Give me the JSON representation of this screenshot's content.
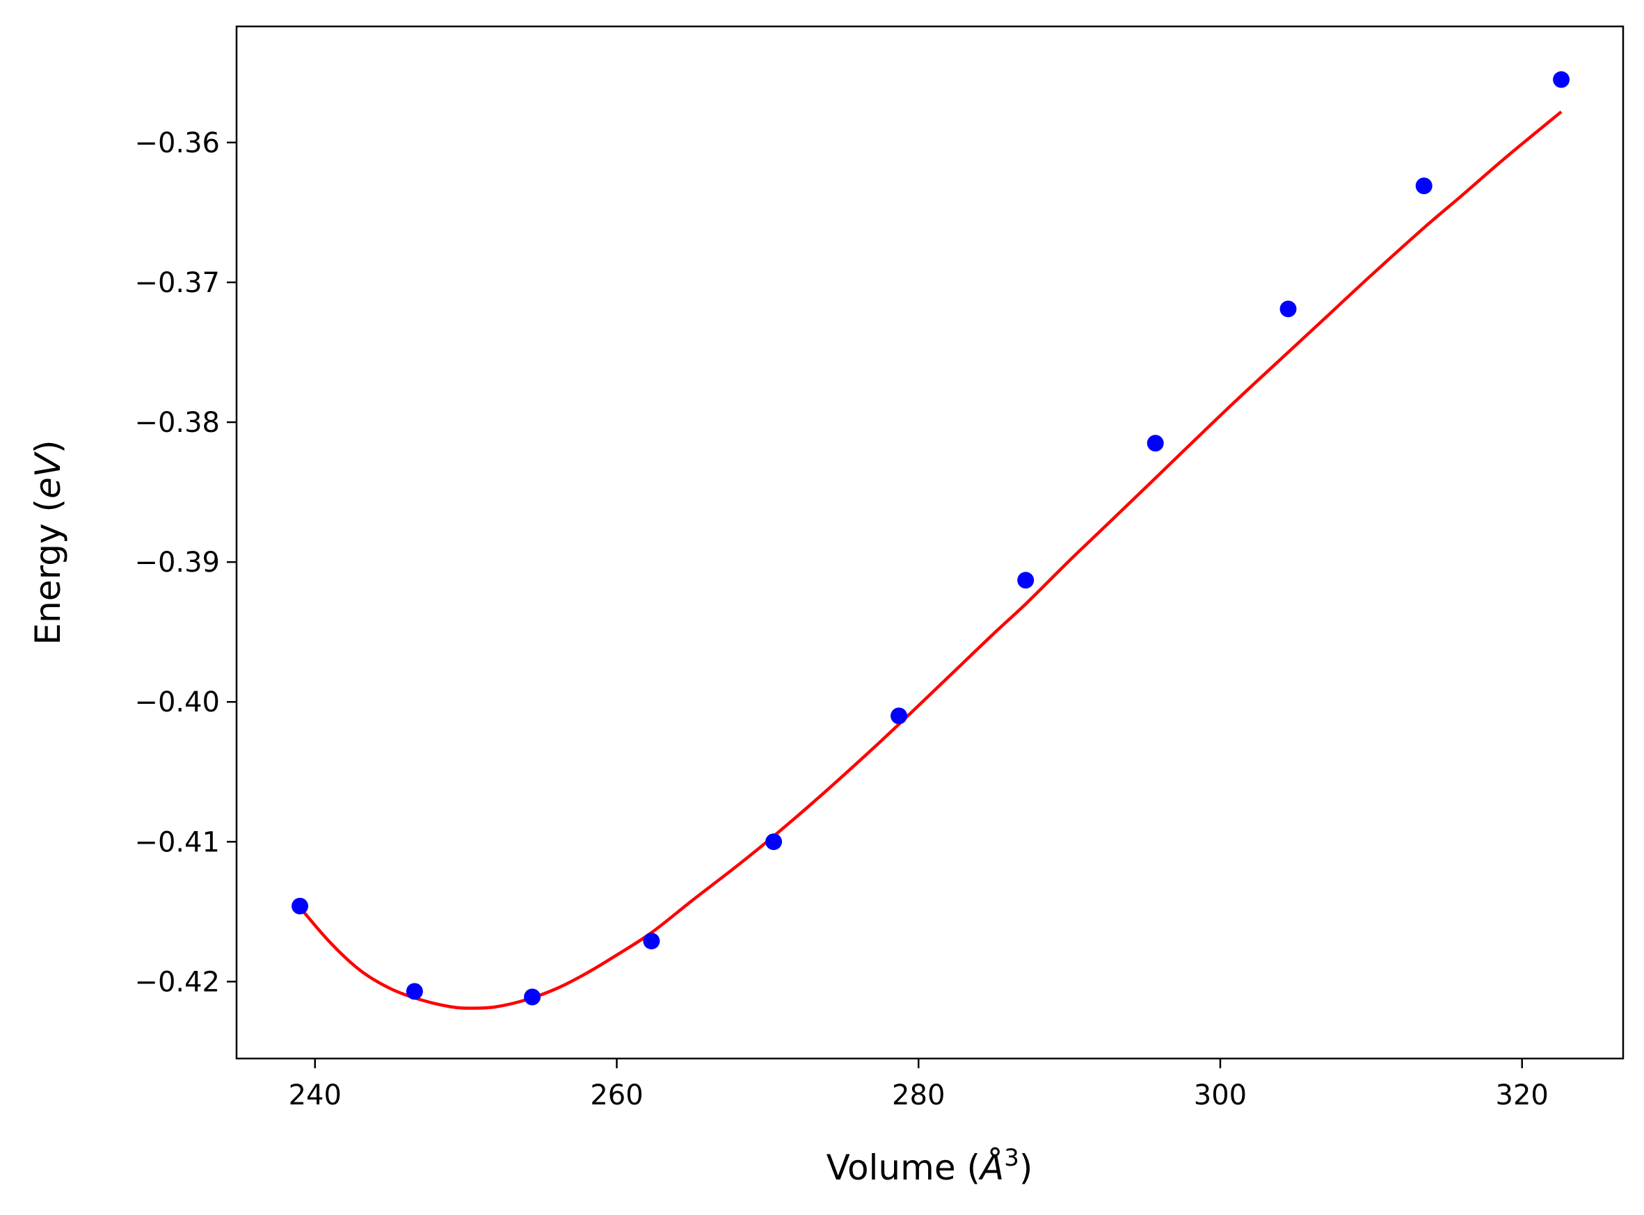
{
  "colors": {
    "fit_line": "#ff0000",
    "points": "#0000ff",
    "axes": "#000000",
    "background": "#ffffff"
  },
  "chart_data": {
    "type": "scatter",
    "title": "",
    "xlabel": {
      "prefix": "Volume (",
      "italic": "Å",
      "sup": "3",
      "suffix": ")"
    },
    "ylabel": {
      "prefix": "Energy (",
      "italic": "eV",
      "suffix": ")"
    },
    "xlim": [
      234.8,
      326.7
    ],
    "ylim": [
      -0.4255,
      -0.3517
    ],
    "xticks": [
      240,
      260,
      280,
      300,
      320
    ],
    "xtick_labels": [
      "240",
      "260",
      "280",
      "300",
      "320"
    ],
    "yticks": [
      -0.42,
      -0.41,
      -0.4,
      -0.39,
      -0.38,
      -0.37,
      -0.36
    ],
    "ytick_labels": [
      "−0.42",
      "−0.41",
      "−0.40",
      "−0.39",
      "−0.38",
      "−0.37",
      "−0.36"
    ],
    "grid": false,
    "series": [
      {
        "kind": "points",
        "color": "#0000ff",
        "x": [
          239.0,
          246.6,
          254.4,
          262.3,
          270.4,
          278.7,
          287.1,
          295.7,
          304.5,
          313.5,
          322.6
        ],
        "y": [
          -0.4146,
          -0.4207,
          -0.4211,
          -0.4171,
          -0.41,
          -0.401,
          -0.3913,
          -0.3815,
          -0.3719,
          -0.3631,
          -0.3555
        ]
      },
      {
        "kind": "fit-line",
        "color": "#ff0000",
        "x": [
          239.0,
          241.0,
          243.0,
          245.0,
          247.0,
          249.0,
          250.4,
          252.0,
          254.0,
          256.0,
          258.0,
          260.0,
          262.3,
          265.0,
          268.0,
          270.4,
          273.0,
          276.0,
          278.7,
          282.0,
          285.0,
          287.1,
          290.0,
          293.0,
          295.7,
          298.0,
          301.0,
          304.5,
          307.0,
          310.0,
          313.5,
          316.0,
          319.0,
          322.6
        ],
        "y": [
          -0.4147,
          -0.4172,
          -0.4192,
          -0.4205,
          -0.4213,
          -0.4218,
          -0.4219,
          -0.4218,
          -0.4213,
          -0.4205,
          -0.4194,
          -0.4181,
          -0.4165,
          -0.4142,
          -0.4117,
          -0.4096,
          -0.4072,
          -0.4043,
          -0.4016,
          -0.3982,
          -0.3951,
          -0.393,
          -0.3899,
          -0.3868,
          -0.384,
          -0.3816,
          -0.3785,
          -0.375,
          -0.3725,
          -0.3695,
          -0.3661,
          -0.3638,
          -0.361,
          -0.3578
        ]
      }
    ]
  }
}
